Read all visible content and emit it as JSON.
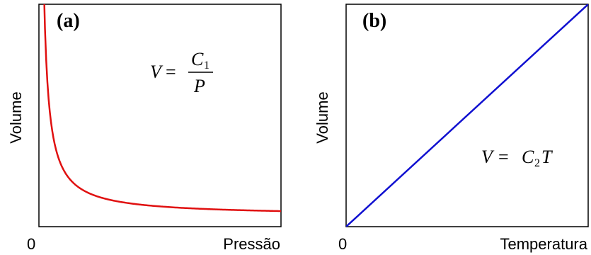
{
  "chart_data": [
    {
      "type": "line",
      "panel_label": "(a)",
      "xlabel": "Pressão",
      "ylabel": "Volume",
      "x_tick_labels": [
        "0"
      ],
      "xlim": [
        0,
        10
      ],
      "ylim": [
        0,
        10
      ],
      "grid": false,
      "equation": {
        "lhs": "V",
        "eq": "=",
        "numerator": "C",
        "numerator_sub": "1",
        "denominator": "P"
      },
      "series": [
        {
          "color": "#e01010",
          "x": [
            0.2,
            0.3,
            0.4,
            0.5,
            0.6,
            0.8,
            1.0,
            1.25,
            1.5,
            2.0,
            2.5,
            3.0,
            4.0,
            5.0,
            6.0,
            7.0,
            8.0,
            9.0,
            10.0
          ],
          "y": [
            10.5,
            7.17,
            5.5,
            4.5,
            3.83,
            3.0,
            2.5,
            2.1,
            1.83,
            1.5,
            1.3,
            1.17,
            1.0,
            0.9,
            0.83,
            0.79,
            0.75,
            0.72,
            0.7
          ]
        }
      ]
    },
    {
      "type": "line",
      "panel_label": "(b)",
      "xlabel": "Temperatura",
      "ylabel": "Volume",
      "x_tick_labels": [
        "0"
      ],
      "xlim": [
        0,
        10
      ],
      "ylim": [
        0,
        10
      ],
      "grid": false,
      "equation": {
        "lhs": "V",
        "eq": "=",
        "rhs_a": "C",
        "rhs_a_sub": "2",
        "rhs_b": "T"
      },
      "series": [
        {
          "color": "#1010d0",
          "x": [
            0,
            10
          ],
          "y": [
            0,
            10
          ]
        }
      ]
    }
  ]
}
